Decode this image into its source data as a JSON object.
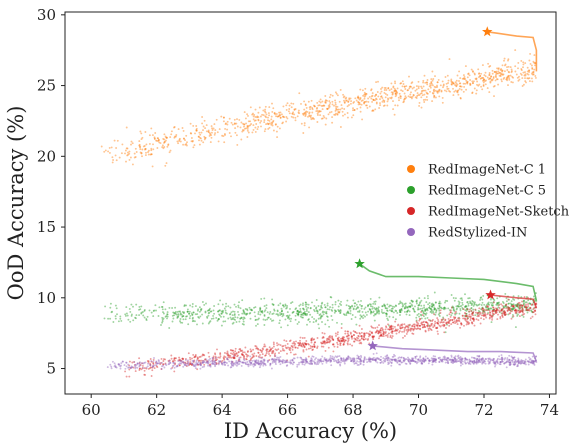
{
  "chart_data": {
    "type": "scatter",
    "xlabel": "ID Accuracy (%)",
    "ylabel": "OoD Accuracy (%)",
    "xlim": [
      59.2,
      74.2
    ],
    "ylim": [
      3.2,
      30.2
    ],
    "xticks": [
      60,
      62,
      64,
      66,
      68,
      70,
      72,
      74
    ],
    "yticks": [
      5,
      10,
      15,
      20,
      25,
      30
    ],
    "grid": false,
    "legend_position": "center-right",
    "series": [
      {
        "name": "RedImageNet-C 1",
        "color": "#ff7f0e",
        "point_cloud": {
          "x_range": [
            60.3,
            73.6
          ],
          "trend": [
            [
              60.5,
              20.0
            ],
            [
              64.0,
              22.0
            ],
            [
              68.0,
              23.8
            ],
            [
              70.5,
              24.8
            ],
            [
              73.2,
              26.0
            ]
          ],
          "spread": 1.1
        },
        "best_point": [
          72.1,
          28.8
        ],
        "frontier": [
          [
            72.1,
            28.8
          ],
          [
            72.4,
            28.7
          ],
          [
            73.0,
            28.5
          ],
          [
            73.5,
            28.4
          ],
          [
            73.6,
            27.5
          ],
          [
            73.6,
            26.0
          ]
        ]
      },
      {
        "name": "RedImageNet-C 5",
        "color": "#2ca02c",
        "point_cloud": {
          "x_range": [
            60.4,
            73.6
          ],
          "trend": [
            [
              60.5,
              8.8
            ],
            [
              64.0,
              8.9
            ],
            [
              68.0,
              9.1
            ],
            [
              71.0,
              9.3
            ],
            [
              73.5,
              9.5
            ]
          ],
          "spread": 0.9
        },
        "best_point": [
          68.2,
          12.4
        ],
        "frontier": [
          [
            68.2,
            12.4
          ],
          [
            68.5,
            11.9
          ],
          [
            69.0,
            11.5
          ],
          [
            70.0,
            11.5
          ],
          [
            71.0,
            11.4
          ],
          [
            72.0,
            11.3
          ],
          [
            73.0,
            11.0
          ],
          [
            73.5,
            10.8
          ],
          [
            73.6,
            9.8
          ]
        ]
      },
      {
        "name": "RedImageNet-Sketch",
        "color": "#d62728",
        "point_cloud": {
          "x_range": [
            61.0,
            73.6
          ],
          "trend": [
            [
              61.0,
              5.0
            ],
            [
              64.0,
              5.8
            ],
            [
              67.0,
              6.8
            ],
            [
              70.0,
              8.0
            ],
            [
              73.5,
              9.4
            ]
          ],
          "spread": 0.6
        },
        "best_point": [
          72.2,
          10.2
        ],
        "frontier": [
          [
            72.2,
            10.2
          ],
          [
            72.6,
            10.1
          ],
          [
            73.0,
            10.0
          ],
          [
            73.5,
            9.9
          ],
          [
            73.6,
            9.3
          ]
        ]
      },
      {
        "name": "RedStylized-IN",
        "color": "#9467bd",
        "point_cloud": {
          "x_range": [
            60.4,
            73.6
          ],
          "trend": [
            [
              60.5,
              5.2
            ],
            [
              64.0,
              5.4
            ],
            [
              68.0,
              5.6
            ],
            [
              71.0,
              5.6
            ],
            [
              73.5,
              5.5
            ]
          ],
          "spread": 0.35
        },
        "best_point": [
          68.6,
          6.6
        ],
        "frontier": [
          [
            68.6,
            6.6
          ],
          [
            69.5,
            6.4
          ],
          [
            70.5,
            6.3
          ],
          [
            71.5,
            6.2
          ],
          [
            72.5,
            6.2
          ],
          [
            73.5,
            6.1
          ],
          [
            73.6,
            5.5
          ]
        ]
      }
    ]
  }
}
